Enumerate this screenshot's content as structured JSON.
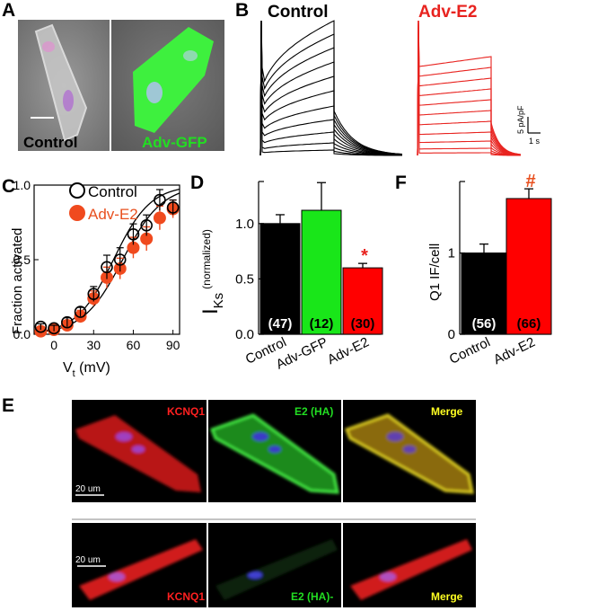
{
  "panel_labels": {
    "a": "A",
    "b": "B",
    "c": "C",
    "d": "D",
    "e": "E",
    "f": "F"
  },
  "panelA": {
    "left_caption": "Control",
    "right_caption": "Adv-GFP"
  },
  "panelB": {
    "control_title": "Control",
    "adv_title": "Adv-E2",
    "scalebar_y": "5 pA/pF",
    "scalebar_x": "1 s",
    "colors": {
      "control": "#000000",
      "adv": "#e8231f"
    }
  },
  "chart_data": [
    {
      "id": "C",
      "type": "scatter",
      "xlabel_main": "V",
      "xlabel_sub": "t",
      "xlabel_unit": " (mV)",
      "ylabel": "Fraction activated",
      "xlim": [
        -15,
        95
      ],
      "ylim": [
        0,
        1.0
      ],
      "x_ticks": [
        "0",
        "30",
        "60",
        "90"
      ],
      "y_ticks": [
        "0.0",
        "0.5",
        "1.0"
      ],
      "legend": [
        "Control",
        "Adv-E2"
      ],
      "series": [
        {
          "name": "Control",
          "x": [
            -10,
            0,
            10,
            20,
            30,
            40,
            50,
            60,
            70,
            80,
            90
          ],
          "y": [
            0.05,
            0.04,
            0.08,
            0.15,
            0.27,
            0.45,
            0.5,
            0.67,
            0.73,
            0.9,
            0.85
          ],
          "err": [
            0.02,
            0.02,
            0.03,
            0.03,
            0.05,
            0.08,
            0.08,
            0.07,
            0.07,
            0.07,
            0.05
          ]
        },
        {
          "name": "Adv-E2",
          "x": [
            -10,
            0,
            10,
            20,
            30,
            40,
            50,
            60,
            70,
            80,
            90
          ],
          "y": [
            0.02,
            0.03,
            0.06,
            0.12,
            0.24,
            0.38,
            0.44,
            0.58,
            0.64,
            0.78,
            0.84
          ],
          "err": [
            0.02,
            0.02,
            0.03,
            0.04,
            0.05,
            0.07,
            0.07,
            0.07,
            0.08,
            0.08,
            0.06
          ]
        }
      ],
      "fit_curves": {
        "control": {
          "v_half": 45,
          "k": 14
        },
        "adv": {
          "v_half": 52,
          "k": 15
        }
      }
    },
    {
      "id": "D",
      "type": "bar",
      "ylabel_main": "I",
      "ylabel_sub": "Ks",
      "ylabel_unit": "(normalized)",
      "categories": [
        "Control",
        "Adv-GFP",
        "Adv-E2"
      ],
      "values": [
        1.0,
        1.12,
        0.6
      ],
      "errors": [
        0.08,
        0.25,
        0.04
      ],
      "n_labels": [
        "(47)",
        "(12)",
        "(30)"
      ],
      "colors": [
        "#000000",
        "#19e619",
        "#ff0000"
      ],
      "n_colors": [
        "#ffffff",
        "#000000",
        "#000000"
      ],
      "ylim": [
        0,
        1.38
      ],
      "y_ticks": [
        "0.0",
        "0.5",
        "1.0"
      ],
      "significance": "*",
      "significance_color": "#e8231f"
    },
    {
      "id": "F",
      "type": "bar",
      "ylabel": "Q1 IF/cell",
      "categories": [
        "Control",
        "Adv-E2"
      ],
      "values": [
        1.0,
        1.67
      ],
      "errors": [
        0.11,
        0.12
      ],
      "n_labels": [
        "(56)",
        "(66)"
      ],
      "colors": [
        "#000000",
        "#ff0000"
      ],
      "n_colors": [
        "#ffffff",
        "#000000"
      ],
      "ylim": [
        0,
        1.88
      ],
      "y_ticks": [
        "0",
        "1"
      ],
      "significance": "#",
      "significance_color": "#e8501f"
    }
  ],
  "panelE": {
    "top": {
      "labels": [
        "KCNQ1",
        "E2 (HA)",
        "Merge"
      ],
      "scale": "20 um"
    },
    "bottom": {
      "labels": [
        "KCNQ1",
        "E2 (HA)-",
        "Merge"
      ],
      "scale": "20 um"
    },
    "label_colors": [
      "#ff2020",
      "#22dd22",
      "#ffff22"
    ]
  }
}
